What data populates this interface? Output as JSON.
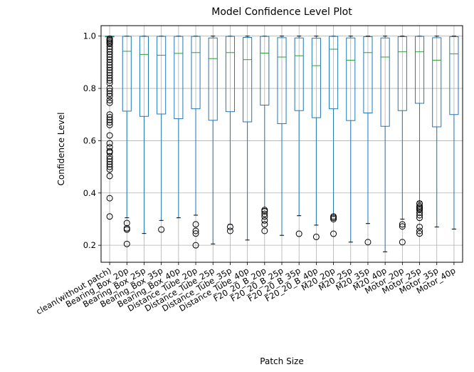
{
  "chart_data": {
    "type": "box",
    "title": "Model Confidence Level Plot",
    "xlabel": "Patch Size",
    "ylabel": "Confidence Level",
    "ylim": [
      0.135,
      1.04
    ],
    "yticks": [
      0.2,
      0.4,
      0.6,
      0.8,
      1.0
    ],
    "ytick_labels": [
      "0.2",
      "0.4",
      "0.6",
      "0.8",
      "1.0"
    ],
    "grid": true,
    "colors": {
      "box": "#1f77b4",
      "median": "#2ca02c",
      "grid": "#b0b0b0",
      "flier": "#000000"
    },
    "categories": [
      "clean(without patch)",
      "Bearing_Box_20p",
      "Bearing_Box_25p",
      "Bearing_Box_35p",
      "Bearing_Box_40p",
      "Distance_Tube_20p",
      "Distance_Tube_25p",
      "Distance_Tube_35p",
      "Distance_Tube_40p",
      "F20_20_B_20p",
      "F20_20_B_25p",
      "F20_20_B_35p",
      "F20_20_B_40p",
      "M20_20p",
      "M20_25p",
      "M20_35p",
      "M20_40p",
      "Motor_20p",
      "Motor_25p",
      "Motor_35p",
      "Motor_40p"
    ],
    "boxes": [
      {
        "whislo": 0.995,
        "q1": 0.997,
        "med": 0.999,
        "q3": 1.0,
        "whishi": 1.0,
        "fliers": [
          0.31,
          0.38,
          0.465,
          0.49,
          0.5,
          0.51,
          0.52,
          0.53,
          0.54,
          0.555,
          0.56,
          0.575,
          0.59,
          0.62,
          0.66,
          0.67,
          0.68,
          0.69,
          0.7,
          0.745,
          0.755,
          0.77,
          0.78,
          0.79,
          0.8,
          0.82,
          0.83,
          0.84,
          0.85,
          0.86,
          0.87,
          0.88,
          0.89,
          0.9,
          0.91,
          0.92,
          0.93,
          0.94,
          0.95,
          0.96,
          0.97,
          0.975,
          0.98,
          0.985,
          0.99
        ]
      },
      {
        "whislo": 0.305,
        "q1": 0.713,
        "med": 0.942,
        "q3": 0.999,
        "whishi": 1.0,
        "fliers": [
          0.205,
          0.26,
          0.265,
          0.285
        ]
      },
      {
        "whislo": 0.245,
        "q1": 0.693,
        "med": 0.93,
        "q3": 0.999,
        "whishi": 1.0,
        "fliers": []
      },
      {
        "whislo": 0.295,
        "q1": 0.702,
        "med": 0.927,
        "q3": 0.999,
        "whishi": 1.0,
        "fliers": [
          0.26
        ]
      },
      {
        "whislo": 0.305,
        "q1": 0.684,
        "med": 0.934,
        "q3": 0.999,
        "whishi": 1.0,
        "fliers": []
      },
      {
        "whislo": 0.315,
        "q1": 0.722,
        "med": 0.937,
        "q3": 0.999,
        "whishi": 1.0,
        "fliers": [
          0.2,
          0.245,
          0.255,
          0.28
        ]
      },
      {
        "whislo": 0.205,
        "q1": 0.678,
        "med": 0.914,
        "q3": 0.993,
        "whishi": 1.0,
        "fliers": []
      },
      {
        "whislo": 0.28,
        "q1": 0.711,
        "med": 0.937,
        "q3": 0.999,
        "whishi": 1.0,
        "fliers": [
          0.255,
          0.27
        ]
      },
      {
        "whislo": 0.22,
        "q1": 0.672,
        "med": 0.91,
        "q3": 0.995,
        "whishi": 1.0,
        "fliers": []
      },
      {
        "whislo": 0.34,
        "q1": 0.736,
        "med": 0.935,
        "q3": 0.999,
        "whishi": 1.0,
        "fliers": [
          0.255,
          0.28,
          0.295,
          0.31,
          0.32,
          0.33,
          0.335
        ]
      },
      {
        "whislo": 0.238,
        "q1": 0.665,
        "med": 0.92,
        "q3": 0.994,
        "whishi": 1.0,
        "fliers": []
      },
      {
        "whislo": 0.313,
        "q1": 0.715,
        "med": 0.925,
        "q3": 0.993,
        "whishi": 1.0,
        "fliers": [
          0.244
        ]
      },
      {
        "whislo": 0.277,
        "q1": 0.688,
        "med": 0.887,
        "q3": 0.992,
        "whishi": 1.0,
        "fliers": [
          0.232
        ]
      },
      {
        "whislo": 0.315,
        "q1": 0.722,
        "med": 0.95,
        "q3": 0.999,
        "whishi": 1.0,
        "fliers": [
          0.244,
          0.3,
          0.305,
          0.31
        ]
      },
      {
        "whislo": 0.212,
        "q1": 0.677,
        "med": 0.908,
        "q3": 0.993,
        "whishi": 1.0,
        "fliers": []
      },
      {
        "whislo": 0.283,
        "q1": 0.706,
        "med": 0.937,
        "q3": 0.998,
        "whishi": 1.0,
        "fliers": [
          0.212
        ]
      },
      {
        "whislo": 0.175,
        "q1": 0.655,
        "med": 0.92,
        "q3": 0.993,
        "whishi": 1.0,
        "fliers": []
      },
      {
        "whislo": 0.3,
        "q1": 0.715,
        "med": 0.94,
        "q3": 0.998,
        "whishi": 1.0,
        "fliers": [
          0.212,
          0.272,
          0.28
        ]
      },
      {
        "whislo": 0.365,
        "q1": 0.743,
        "med": 0.94,
        "q3": 0.999,
        "whishi": 1.0,
        "fliers": [
          0.245,
          0.255,
          0.27,
          0.305,
          0.315,
          0.325,
          0.335,
          0.34,
          0.345,
          0.35,
          0.36
        ]
      },
      {
        "whislo": 0.27,
        "q1": 0.653,
        "med": 0.908,
        "q3": 0.994,
        "whishi": 1.0,
        "fliers": []
      },
      {
        "whislo": 0.262,
        "q1": 0.7,
        "med": 0.932,
        "q3": 0.998,
        "whishi": 1.0,
        "fliers": []
      }
    ]
  }
}
